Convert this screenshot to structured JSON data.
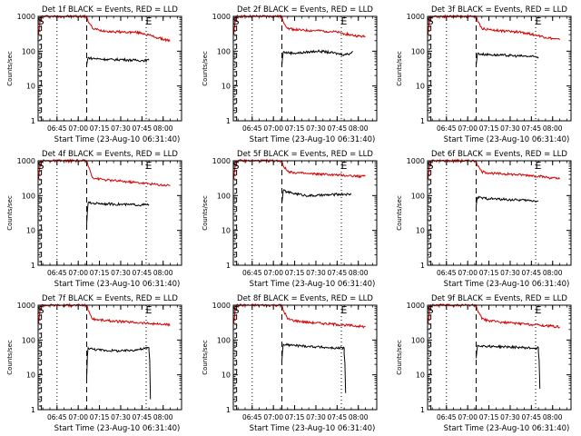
{
  "figure": {
    "title_template": "Det {n}f BLACK = Events, RED = LLD",
    "xlabel": "Start Time (23-Aug-10 06:31:40)",
    "ylabel": "Counts/sec"
  },
  "chart_data": [
    {
      "type": "line",
      "title": "Det 1f BLACK = Events, RED = LLD",
      "xlabel": "Start Time (23-Aug-10 06:31:40)",
      "ylabel": "Counts/sec",
      "yscale": "log",
      "ylim": [
        1,
        1000
      ],
      "x_tick_labels": [
        "06:45",
        "07:00",
        "07:15",
        "07:30",
        "07:45",
        "08:00"
      ],
      "y_tick_labels": [
        "1",
        "10",
        "100",
        "1000"
      ],
      "markers": [
        "S",
        "E"
      ],
      "series": [
        {
          "color": "#d40000",
          "x": [
            "06:32",
            "06:33",
            "06:34",
            "07:06",
            "07:07",
            "07:10",
            "07:15",
            "07:20",
            "07:25",
            "07:30",
            "07:35",
            "07:40",
            "07:45",
            "07:50",
            "07:55",
            "08:00",
            "08:05"
          ],
          "y": [
            300,
            700,
            1000,
            1000,
            700,
            450,
            400,
            380,
            360,
            360,
            350,
            350,
            330,
            290,
            250,
            220,
            200
          ]
        },
        {
          "color": "#000000",
          "x": [
            "07:06",
            "07:07",
            "07:10",
            "07:15",
            "07:20",
            "07:25",
            "07:30",
            "07:35",
            "07:40",
            "07:45",
            "07:50"
          ],
          "y": [
            40,
            65,
            62,
            60,
            58,
            57,
            58,
            56,
            55,
            54,
            55
          ]
        }
      ]
    },
    {
      "type": "line",
      "title": "Det 2f BLACK = Events, RED = LLD",
      "xlabel": "Start Time (23-Aug-10 06:31:40)",
      "ylabel": "Counts/sec",
      "yscale": "log",
      "ylim": [
        1,
        1000
      ],
      "x_tick_labels": [
        "06:45",
        "07:00",
        "07:15",
        "07:30",
        "07:45",
        "08:00"
      ],
      "y_tick_labels": [
        "1",
        "10",
        "100",
        "1000"
      ],
      "markers": [
        "S",
        "E"
      ],
      "series": [
        {
          "color": "#d40000",
          "x": [
            "06:32",
            "06:33",
            "06:34",
            "07:06",
            "07:07",
            "07:10",
            "07:15",
            "07:20",
            "07:25",
            "07:30",
            "07:35",
            "07:40",
            "07:45",
            "07:50",
            "07:55",
            "08:00",
            "08:05"
          ],
          "y": [
            300,
            700,
            1000,
            1000,
            700,
            450,
            420,
            400,
            390,
            390,
            380,
            370,
            350,
            320,
            290,
            270,
            260
          ]
        },
        {
          "color": "#000000",
          "x": [
            "07:06",
            "07:07",
            "07:10",
            "07:15",
            "07:20",
            "07:25",
            "07:30",
            "07:35",
            "07:40",
            "07:45",
            "07:50",
            "07:54",
            "07:56"
          ],
          "y": [
            40,
            95,
            90,
            88,
            90,
            95,
            100,
            98,
            92,
            85,
            80,
            85,
            100
          ]
        }
      ]
    },
    {
      "type": "line",
      "title": "Det 3f BLACK = Events, RED = LLD",
      "xlabel": "Start Time (23-Aug-10 06:31:40)",
      "ylabel": "Counts/sec",
      "yscale": "log",
      "ylim": [
        1,
        1000
      ],
      "x_tick_labels": [
        "06:45",
        "07:00",
        "07:15",
        "07:30",
        "07:45",
        "08:00"
      ],
      "y_tick_labels": [
        "1",
        "10",
        "100",
        "1000"
      ],
      "markers": [
        "S",
        "E"
      ],
      "series": [
        {
          "color": "#d40000",
          "x": [
            "06:32",
            "06:33",
            "06:34",
            "07:06",
            "07:07",
            "07:10",
            "07:15",
            "07:20",
            "07:25",
            "07:30",
            "07:35",
            "07:40",
            "07:45",
            "07:50",
            "07:55",
            "08:00",
            "08:05"
          ],
          "y": [
            300,
            700,
            1000,
            1000,
            700,
            450,
            420,
            400,
            380,
            370,
            360,
            340,
            310,
            280,
            250,
            230,
            210
          ]
        },
        {
          "color": "#000000",
          "x": [
            "07:06",
            "07:07",
            "07:10",
            "07:15",
            "07:20",
            "07:25",
            "07:30",
            "07:35",
            "07:40",
            "07:45",
            "07:50"
          ],
          "y": [
            40,
            85,
            82,
            80,
            78,
            76,
            75,
            73,
            72,
            70,
            68
          ]
        }
      ]
    },
    {
      "type": "line",
      "title": "Det 4f BLACK = Events, RED = LLD",
      "xlabel": "Start Time (23-Aug-10 06:31:40)",
      "ylabel": "Counts/sec",
      "yscale": "log",
      "ylim": [
        1,
        1000
      ],
      "x_tick_labels": [
        "06:45",
        "07:00",
        "07:15",
        "07:30",
        "07:45",
        "08:00"
      ],
      "y_tick_labels": [
        "1",
        "10",
        "100",
        "1000"
      ],
      "markers": [
        "S",
        "E"
      ],
      "series": [
        {
          "color": "#d40000",
          "x": [
            "06:32",
            "06:33",
            "06:34",
            "07:06",
            "07:07",
            "07:10",
            "07:15",
            "07:20",
            "07:25",
            "07:30",
            "07:35",
            "07:40",
            "07:45",
            "07:50",
            "07:55",
            "08:00",
            "08:05"
          ],
          "y": [
            300,
            700,
            1000,
            1000,
            700,
            330,
            300,
            280,
            270,
            260,
            250,
            240,
            230,
            220,
            210,
            200,
            200
          ]
        },
        {
          "color": "#000000",
          "x": [
            "07:06",
            "07:07",
            "07:10",
            "07:15",
            "07:20",
            "07:25",
            "07:30",
            "07:35",
            "07:40",
            "07:45",
            "07:50"
          ],
          "y": [
            15,
            62,
            60,
            60,
            58,
            57,
            56,
            55,
            55,
            54,
            55
          ]
        }
      ]
    },
    {
      "type": "line",
      "title": "Det 5f BLACK = Events, RED = LLD",
      "xlabel": "Start Time (23-Aug-10 06:31:40)",
      "ylabel": "Counts/sec",
      "yscale": "log",
      "ylim": [
        1,
        1000
      ],
      "x_tick_labels": [
        "06:45",
        "07:00",
        "07:15",
        "07:30",
        "07:45",
        "08:00"
      ],
      "y_tick_labels": [
        "1",
        "10",
        "100",
        "1000"
      ],
      "markers": [
        "S",
        "E"
      ],
      "series": [
        {
          "color": "#d40000",
          "x": [
            "06:32",
            "06:33",
            "06:34",
            "07:06",
            "07:07",
            "07:10",
            "07:15",
            "07:20",
            "07:25",
            "07:30",
            "07:35",
            "07:40",
            "07:45",
            "07:50",
            "07:55",
            "08:00",
            "08:05"
          ],
          "y": [
            300,
            700,
            1000,
            1000,
            700,
            500,
            460,
            440,
            420,
            420,
            410,
            400,
            390,
            380,
            370,
            360,
            360
          ]
        },
        {
          "color": "#000000",
          "x": [
            "07:06",
            "07:07",
            "07:10",
            "07:15",
            "07:20",
            "07:25",
            "07:30",
            "07:35",
            "07:40",
            "07:45",
            "07:50",
            "07:55"
          ],
          "y": [
            60,
            140,
            125,
            115,
            105,
            100,
            100,
            103,
            105,
            108,
            110,
            108
          ]
        }
      ]
    },
    {
      "type": "line",
      "title": "Det 6f BLACK = Events, RED = LLD",
      "xlabel": "Start Time (23-Aug-10 06:31:40)",
      "ylabel": "Counts/sec",
      "yscale": "log",
      "ylim": [
        1,
        1000
      ],
      "x_tick_labels": [
        "06:45",
        "07:00",
        "07:15",
        "07:30",
        "07:45",
        "08:00"
      ],
      "y_tick_labels": [
        "1",
        "10",
        "100",
        "1000"
      ],
      "markers": [
        "S",
        "E"
      ],
      "series": [
        {
          "color": "#d40000",
          "x": [
            "06:32",
            "06:33",
            "06:34",
            "07:06",
            "07:07",
            "07:10",
            "07:15",
            "07:20",
            "07:25",
            "07:30",
            "07:35",
            "07:40",
            "07:45",
            "07:50",
            "07:55",
            "08:00",
            "08:05"
          ],
          "y": [
            300,
            700,
            1000,
            1000,
            700,
            480,
            450,
            430,
            420,
            410,
            400,
            390,
            380,
            360,
            340,
            320,
            300
          ]
        },
        {
          "color": "#000000",
          "x": [
            "07:06",
            "07:07",
            "07:10",
            "07:15",
            "07:20",
            "07:25",
            "07:30",
            "07:35",
            "07:40",
            "07:45",
            "07:50"
          ],
          "y": [
            50,
            90,
            85,
            82,
            80,
            78,
            76,
            75,
            74,
            72,
            70
          ]
        }
      ]
    },
    {
      "type": "line",
      "title": "Det 7f BLACK = Events, RED = LLD",
      "xlabel": "Start Time (23-Aug-10 06:31:40)",
      "ylabel": "Counts/sec",
      "yscale": "log",
      "ylim": [
        1,
        1000
      ],
      "x_tick_labels": [
        "06:45",
        "07:00",
        "07:15",
        "07:30",
        "07:45",
        "08:00"
      ],
      "y_tick_labels": [
        "1",
        "10",
        "100",
        "1000"
      ],
      "markers": [
        "S",
        "E"
      ],
      "series": [
        {
          "color": "#d40000",
          "x": [
            "06:32",
            "06:33",
            "06:34",
            "07:06",
            "07:07",
            "07:10",
            "07:15",
            "07:20",
            "07:25",
            "07:30",
            "07:35",
            "07:40",
            "07:45",
            "07:50",
            "07:55",
            "08:00",
            "08:05"
          ],
          "y": [
            300,
            700,
            1000,
            1000,
            700,
            400,
            380,
            360,
            350,
            340,
            330,
            320,
            310,
            300,
            290,
            280,
            270
          ]
        },
        {
          "color": "#000000",
          "x": [
            "07:06",
            "07:07",
            "07:10",
            "07:15",
            "07:20",
            "07:25",
            "07:30",
            "07:35",
            "07:40",
            "07:45",
            "07:50",
            "07:50",
            "07:51"
          ],
          "y": [
            8,
            60,
            55,
            52,
            50,
            50,
            48,
            50,
            52,
            55,
            60,
            50,
            2
          ]
        }
      ]
    },
    {
      "type": "line",
      "title": "Det 8f BLACK = Events, RED = LLD",
      "xlabel": "Start Time (23-Aug-10 06:31:40)",
      "ylabel": "Counts/sec",
      "yscale": "log",
      "ylim": [
        1,
        1000
      ],
      "x_tick_labels": [
        "06:45",
        "07:00",
        "07:15",
        "07:30",
        "07:45",
        "08:00"
      ],
      "y_tick_labels": [
        "1",
        "10",
        "100",
        "1000"
      ],
      "markers": [
        "S",
        "E"
      ],
      "series": [
        {
          "color": "#d40000",
          "x": [
            "06:32",
            "06:33",
            "06:34",
            "07:06",
            "07:07",
            "07:10",
            "07:15",
            "07:20",
            "07:25",
            "07:30",
            "07:35",
            "07:40",
            "07:45",
            "07:50",
            "07:55",
            "08:00",
            "08:05"
          ],
          "y": [
            300,
            700,
            1000,
            1000,
            700,
            400,
            360,
            340,
            320,
            310,
            300,
            290,
            280,
            270,
            260,
            250,
            240
          ]
        },
        {
          "color": "#000000",
          "x": [
            "07:06",
            "07:07",
            "07:10",
            "07:15",
            "07:20",
            "07:25",
            "07:30",
            "07:35",
            "07:40",
            "07:45",
            "07:50",
            "07:50",
            "07:51"
          ],
          "y": [
            25,
            75,
            72,
            70,
            68,
            66,
            64,
            62,
            60,
            58,
            60,
            40,
            3
          ]
        }
      ]
    },
    {
      "type": "line",
      "title": "Det 9f BLACK = Events, RED = LLD",
      "xlabel": "Start Time (23-Aug-10 06:31:40)",
      "ylabel": "Counts/sec",
      "yscale": "log",
      "ylim": [
        1,
        1000
      ],
      "x_tick_labels": [
        "06:45",
        "07:00",
        "07:15",
        "07:30",
        "07:45",
        "08:00"
      ],
      "y_tick_labels": [
        "1",
        "10",
        "100",
        "1000"
      ],
      "markers": [
        "S",
        "E"
      ],
      "series": [
        {
          "color": "#d40000",
          "x": [
            "06:32",
            "06:33",
            "06:34",
            "07:06",
            "07:07",
            "07:10",
            "07:15",
            "07:20",
            "07:25",
            "07:30",
            "07:35",
            "07:40",
            "07:45",
            "07:50",
            "07:55",
            "08:00",
            "08:05"
          ],
          "y": [
            300,
            700,
            1000,
            1000,
            700,
            400,
            360,
            340,
            320,
            310,
            300,
            290,
            280,
            270,
            260,
            250,
            240
          ]
        },
        {
          "color": "#000000",
          "x": [
            "07:06",
            "07:07",
            "07:10",
            "07:15",
            "07:20",
            "07:25",
            "07:30",
            "07:35",
            "07:40",
            "07:45",
            "07:50",
            "07:50",
            "07:51"
          ],
          "y": [
            30,
            70,
            68,
            66,
            65,
            64,
            63,
            62,
            60,
            58,
            60,
            45,
            4
          ]
        }
      ]
    }
  ]
}
